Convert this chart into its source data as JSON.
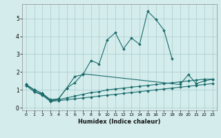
{
  "xlabel": "Humidex (Indice chaleur)",
  "ylabel": "",
  "bg_color": "#d4ecec",
  "line_color": "#1a6b6b",
  "grid_color": "#a8cccc",
  "xlim": [
    -0.5,
    23.5
  ],
  "ylim": [
    -0.15,
    5.8
  ],
  "xticks": [
    0,
    1,
    2,
    3,
    4,
    5,
    6,
    7,
    8,
    9,
    10,
    11,
    12,
    13,
    14,
    15,
    16,
    17,
    18,
    19,
    20,
    21,
    22,
    23
  ],
  "yticks": [
    0,
    1,
    2,
    3,
    4,
    5
  ],
  "series": [
    [
      1.3,
      1.0,
      0.8,
      0.4,
      0.5,
      1.1,
      1.75,
      1.85,
      2.65,
      2.45,
      3.8,
      4.2,
      3.3,
      3.9,
      3.55,
      5.4,
      4.95,
      4.35,
      2.75,
      null,
      null,
      null,
      null,
      null
    ],
    [
      1.3,
      1.0,
      0.8,
      0.45,
      0.5,
      1.1,
      1.4,
      1.9,
      null,
      null,
      null,
      null,
      null,
      null,
      null,
      null,
      null,
      null,
      null,
      1.3,
      1.85,
      1.35,
      1.5,
      1.6
    ],
    [
      1.25,
      0.9,
      0.75,
      0.4,
      0.45,
      0.55,
      0.65,
      0.75,
      0.85,
      0.9,
      1.0,
      1.05,
      1.1,
      1.15,
      1.2,
      1.25,
      1.3,
      1.35,
      1.4,
      1.45,
      1.5,
      1.55,
      1.6,
      1.6
    ],
    [
      1.25,
      0.9,
      0.7,
      0.35,
      0.4,
      0.45,
      0.5,
      0.55,
      0.6,
      0.65,
      0.7,
      0.75,
      0.8,
      0.85,
      0.9,
      0.95,
      1.0,
      1.05,
      1.1,
      1.15,
      1.2,
      1.25,
      1.3,
      1.35
    ]
  ]
}
